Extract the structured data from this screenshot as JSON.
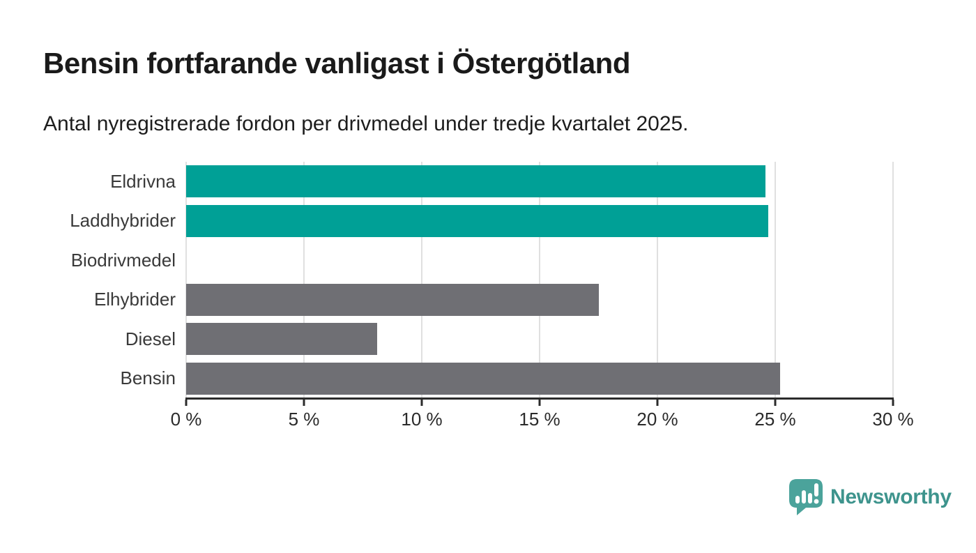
{
  "chart_data": {
    "type": "bar",
    "orientation": "horizontal",
    "title": "Bensin fortfarande vanligast i Östergötland",
    "subtitle": "Antal nyregistrerade fordon per drivmedel under tredje kvartalet 2025.",
    "categories": [
      "Eldrivna",
      "Laddhybrider",
      "Biodrivmedel",
      "Elhybrider",
      "Diesel",
      "Bensin"
    ],
    "values": [
      24.6,
      24.7,
      0,
      17.5,
      8.1,
      25.2
    ],
    "unit": "%",
    "bar_colors": [
      "#00A096",
      "#00A096",
      "#6F6F74",
      "#6F6F74",
      "#6F6F74",
      "#6F6F74"
    ],
    "x_ticks": [
      "0 %",
      "5 %",
      "10 %",
      "15 %",
      "20 %",
      "25 %",
      "30 %"
    ],
    "xlim": [
      0,
      30
    ],
    "grid": true,
    "legend": false,
    "colors": {
      "highlight": "#00A096",
      "default": "#6F6F74",
      "gridline": "#e0e0e0",
      "axis": "#2b2b2b"
    }
  },
  "branding": {
    "name": "Newsworthy",
    "icon": "newsworthy-speech-bubble-chart-icon",
    "icon_color": "#4BA39B",
    "text_color": "#3E948D"
  }
}
